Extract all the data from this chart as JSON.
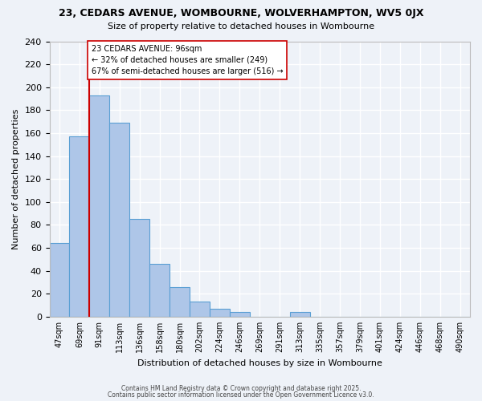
{
  "title": "23, CEDARS AVENUE, WOMBOURNE, WOLVERHAMPTON, WV5 0JX",
  "subtitle": "Size of property relative to detached houses in Wombourne",
  "xlabel": "Distribution of detached houses by size in Wombourne",
  "ylabel": "Number of detached properties",
  "bin_labels": [
    "47sqm",
    "69sqm",
    "91sqm",
    "113sqm",
    "136sqm",
    "158sqm",
    "180sqm",
    "202sqm",
    "224sqm",
    "246sqm",
    "269sqm",
    "291sqm",
    "313sqm",
    "335sqm",
    "357sqm",
    "379sqm",
    "401sqm",
    "424sqm",
    "446sqm",
    "468sqm",
    "490sqm"
  ],
  "bar_values": [
    64,
    157,
    193,
    169,
    85,
    46,
    26,
    13,
    7,
    4,
    0,
    0,
    4,
    0,
    0,
    0,
    0,
    0,
    0,
    0,
    0
  ],
  "bar_color": "#aec6e8",
  "bar_edge_color": "#5a9fd4",
  "vline_color": "#cc0000",
  "annotation_title": "23 CEDARS AVENUE: 96sqm",
  "annotation_line1": "← 32% of detached houses are smaller (249)",
  "annotation_line2": "67% of semi-detached houses are larger (516) →",
  "annotation_box_color": "#ffffff",
  "annotation_box_edge": "#cc0000",
  "ylim": [
    0,
    240
  ],
  "yticks": [
    0,
    20,
    40,
    60,
    80,
    100,
    120,
    140,
    160,
    180,
    200,
    220,
    240
  ],
  "footer1": "Contains HM Land Registry data © Crown copyright and database right 2025.",
  "footer2": "Contains public sector information licensed under the Open Government Licence v3.0.",
  "bg_color": "#eef2f8",
  "grid_color": "#ffffff"
}
